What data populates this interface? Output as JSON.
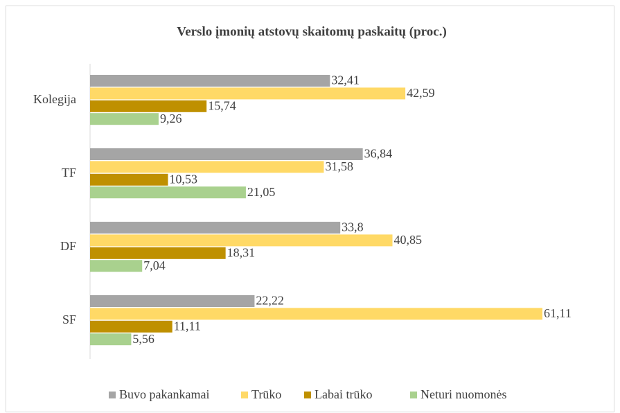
{
  "chart_data": {
    "type": "hbar",
    "title": "Verslo įmonių atstovų skaitomų paskaitų (proc.)",
    "categories": [
      "Kolegija",
      "TF",
      "DF",
      "SF"
    ],
    "xlim": [
      0,
      70
    ],
    "legend": "bottom",
    "series": [
      {
        "name": "Buvo pakankamai",
        "color": "#a5a5a5",
        "values": [
          32.41,
          36.84,
          33.8,
          22.22
        ],
        "value_labels": [
          "32,41",
          "36,84",
          "33,8",
          "22,22"
        ]
      },
      {
        "name": "Trūko",
        "color": "#ffd966",
        "values": [
          42.59,
          31.58,
          40.85,
          61.11
        ],
        "value_labels": [
          "42,59",
          "31,58",
          "40,85",
          "61,11"
        ]
      },
      {
        "name": "Labai trūko",
        "color": "#bf9000",
        "values": [
          15.74,
          10.53,
          18.31,
          11.11
        ],
        "value_labels": [
          "15,74",
          "10,53",
          "18,31",
          "11,11"
        ]
      },
      {
        "name": "Neturi nuomonės",
        "color": "#a9d18e",
        "values": [
          9.26,
          21.05,
          7.04,
          5.56
        ],
        "value_labels": [
          "9,26",
          "21,05",
          "7,04",
          "5,56"
        ]
      }
    ]
  }
}
